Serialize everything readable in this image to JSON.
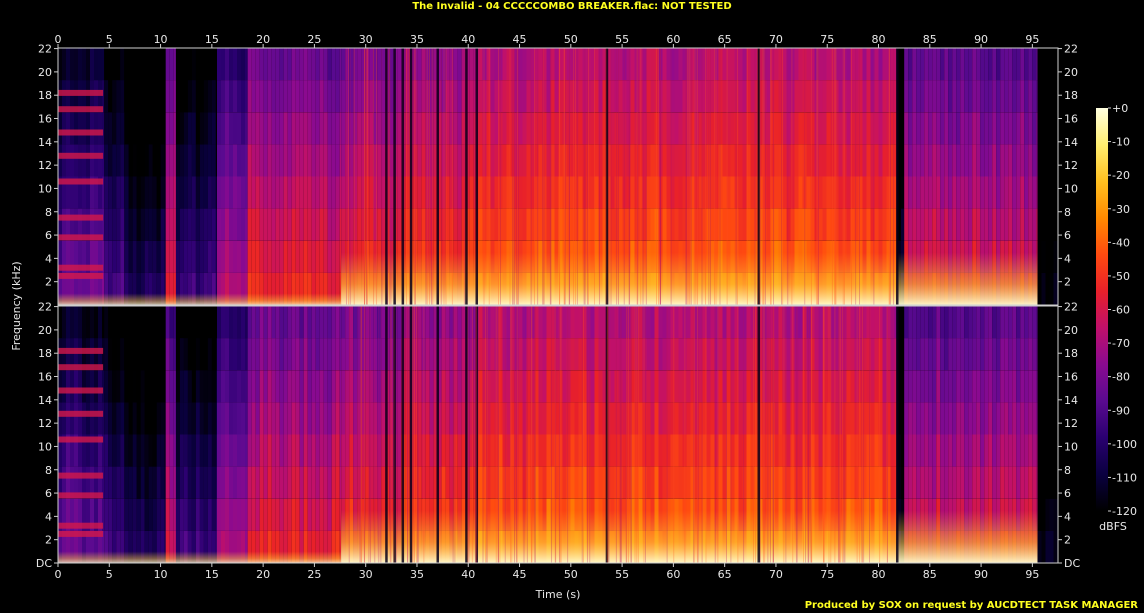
{
  "title": "The Invalid - 04 CCCCCOMBO BREAKER.flac: NOT TESTED",
  "footer": "Produced by SOX on request by AUCDTECT TASK MANAGER",
  "chart_data": {
    "type": "heatmap",
    "title": "The Invalid - 04 CCCCCOMBO BREAKER.flac: NOT TESTED",
    "xlabel": "Time (s)",
    "ylabel": "Frequency (kHz)",
    "xlim": [
      0,
      97.5
    ],
    "ylim": [
      0,
      22.05
    ],
    "x_ticks": [
      0,
      5,
      10,
      15,
      20,
      25,
      30,
      35,
      40,
      45,
      50,
      55,
      60,
      65,
      70,
      75,
      80,
      85,
      90,
      95
    ],
    "y_ticks": [
      "DC",
      "2",
      "4",
      "6",
      "8",
      "10",
      "12",
      "14",
      "16",
      "18",
      "20",
      "22"
    ],
    "channels": [
      "left",
      "right"
    ],
    "colorbar": {
      "label": "dBFS",
      "range": [
        -120,
        0
      ],
      "ticks": [
        "+0",
        "-10",
        "-20",
        "-30",
        "-40",
        "-50",
        "-60",
        "-70",
        "-80",
        "-90",
        "-100",
        "-110",
        "-120"
      ],
      "colors": [
        "#000000",
        "#0a0040",
        "#2a0070",
        "#5a0a90",
        "#8a0a90",
        "#c0106a",
        "#e8202a",
        "#ff4a10",
        "#ff8a00",
        "#ffc020",
        "#ffee70",
        "#ffffe0"
      ]
    },
    "segments": [
      {
        "start": 0,
        "end": 4.5,
        "level": 0.3,
        "cutoff": 22.0
      },
      {
        "start": 4.5,
        "end": 6.5,
        "level": 0.22,
        "cutoff": 22.0
      },
      {
        "start": 6.5,
        "end": 10.5,
        "level": 0.15,
        "cutoff": 22.0
      },
      {
        "start": 10.5,
        "end": 11.5,
        "level": 0.5,
        "cutoff": 22.0
      },
      {
        "start": 11.5,
        "end": 15.5,
        "level": 0.2,
        "cutoff": 22.0
      },
      {
        "start": 15.5,
        "end": 18.5,
        "level": 0.42,
        "cutoff": 22.0
      },
      {
        "start": 18.5,
        "end": 27.6,
        "level": 0.55,
        "cutoff": 22.0
      },
      {
        "start": 27.6,
        "end": 33.5,
        "level": 0.58,
        "cutoff": 22.0
      },
      {
        "start": 33.5,
        "end": 41.0,
        "level": 0.62,
        "cutoff": 22.0
      },
      {
        "start": 41.0,
        "end": 81.8,
        "level": 0.68,
        "cutoff": 22.0
      },
      {
        "start": 81.8,
        "end": 82.5,
        "level": 0.08,
        "cutoff": 22.0
      },
      {
        "start": 82.5,
        "end": 95.5,
        "level": 0.52,
        "cutoff": 22.0
      },
      {
        "start": 95.5,
        "end": 97.5,
        "level": 0.02,
        "cutoff": 22.0
      }
    ],
    "dark_columns": [
      32.0,
      32.8,
      33.6,
      34.4,
      37.0,
      39.8,
      40.8,
      53.5,
      68.3,
      81.8
    ],
    "harmonic_bands_khz": [
      2.5,
      3.2,
      5.8,
      7.5,
      10.6,
      12.8,
      14.8,
      16.8,
      18.2
    ]
  }
}
